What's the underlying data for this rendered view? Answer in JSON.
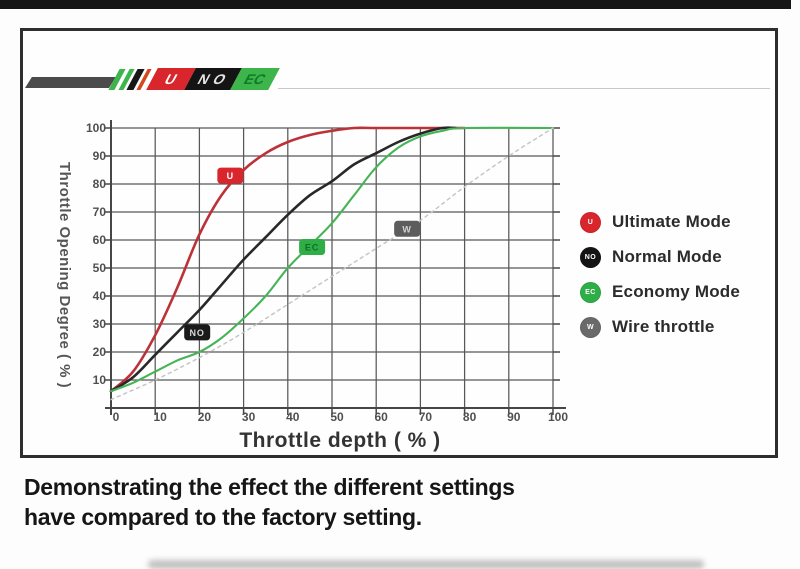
{
  "logo": {
    "segments": [
      {
        "label": "U",
        "bg": "#d8262c",
        "fg": "#ffffff"
      },
      {
        "label": "NO",
        "bg": "#141414",
        "fg": "#e3e3e3"
      },
      {
        "label": "EC",
        "bg": "#3db54a",
        "fg": "#0f7a2b"
      }
    ]
  },
  "legend": {
    "items": [
      {
        "label": "Ultimate Mode",
        "abbr": "U",
        "color": "#d8262c"
      },
      {
        "label": "Normal Mode",
        "abbr": "NO",
        "color": "#141414"
      },
      {
        "label": "Economy Mode",
        "abbr": "EC",
        "color": "#2fae47"
      },
      {
        "label": "Wire throttle",
        "abbr": "W",
        "color": "#6a6a6a"
      }
    ]
  },
  "caption": {
    "line1": "Demonstrating the effect the different settings",
    "line2": "have compared to the factory setting."
  },
  "chart_data": {
    "type": "line",
    "title": "",
    "xlabel": "Throttle depth ( % )",
    "ylabel": "Throttle Opening Degree ( % )",
    "xlim": [
      0,
      100
    ],
    "ylim": [
      0,
      100
    ],
    "grid": true,
    "legend_position": "right",
    "x_ticks": [
      0,
      10,
      20,
      30,
      40,
      50,
      60,
      70,
      80,
      90,
      100
    ],
    "y_ticks": [
      10,
      20,
      30,
      40,
      50,
      60,
      70,
      80,
      90,
      100
    ],
    "series": [
      {
        "name": "Ultimate Mode",
        "color": "#bd3139",
        "width": 2.6,
        "points": [
          [
            0,
            6
          ],
          [
            5,
            13
          ],
          [
            10,
            26
          ],
          [
            15,
            43
          ],
          [
            20,
            62
          ],
          [
            25,
            76
          ],
          [
            30,
            85
          ],
          [
            35,
            91
          ],
          [
            40,
            95
          ],
          [
            45,
            97.5
          ],
          [
            50,
            99
          ],
          [
            55,
            100
          ],
          [
            60,
            100
          ],
          [
            70,
            100
          ],
          [
            80,
            100
          ]
        ]
      },
      {
        "name": "Normal Mode",
        "color": "#282828",
        "width": 2.6,
        "points": [
          [
            0,
            6
          ],
          [
            5,
            11
          ],
          [
            10,
            19
          ],
          [
            15,
            27
          ],
          [
            20,
            35
          ],
          [
            25,
            44
          ],
          [
            30,
            53
          ],
          [
            35,
            61
          ],
          [
            40,
            69
          ],
          [
            45,
            76
          ],
          [
            50,
            81
          ],
          [
            55,
            87
          ],
          [
            60,
            91
          ],
          [
            65,
            95
          ],
          [
            70,
            98
          ],
          [
            75,
            100
          ],
          [
            78,
            100
          ]
        ]
      },
      {
        "name": "Economy Mode",
        "color": "#46b457",
        "width": 2.1,
        "points": [
          [
            0,
            6
          ],
          [
            5,
            9
          ],
          [
            10,
            13
          ],
          [
            15,
            17
          ],
          [
            20,
            20
          ],
          [
            25,
            25
          ],
          [
            30,
            32
          ],
          [
            35,
            40
          ],
          [
            40,
            50
          ],
          [
            45,
            58
          ],
          [
            50,
            66
          ],
          [
            55,
            76
          ],
          [
            60,
            86
          ],
          [
            65,
            93
          ],
          [
            70,
            97
          ],
          [
            75,
            99
          ],
          [
            80,
            100
          ],
          [
            100,
            100
          ]
        ]
      },
      {
        "name": "Wire throttle (factory)",
        "color": "#c6c6c6",
        "width": 1.5,
        "style": "dotted",
        "points": [
          [
            0,
            3
          ],
          [
            10,
            10
          ],
          [
            20,
            18
          ],
          [
            30,
            27
          ],
          [
            40,
            37
          ],
          [
            50,
            47
          ],
          [
            60,
            57
          ],
          [
            70,
            67
          ],
          [
            80,
            79
          ],
          [
            90,
            90
          ],
          [
            100,
            100
          ]
        ]
      }
    ],
    "markers": [
      {
        "label": "U",
        "x": 27,
        "y": 83,
        "color": "#d8262c",
        "fg": "#ffffff"
      },
      {
        "label": "NO",
        "x": 19.5,
        "y": 27,
        "color": "#1a1a1a",
        "fg": "#d9d9d9"
      },
      {
        "label": "EC",
        "x": 45.5,
        "y": 57.5,
        "color": "#2fae47",
        "fg": "#0e6f26"
      },
      {
        "label": "W",
        "x": 67,
        "y": 64,
        "color": "#5d5d5d",
        "fg": "#d4d4d4"
      }
    ]
  }
}
